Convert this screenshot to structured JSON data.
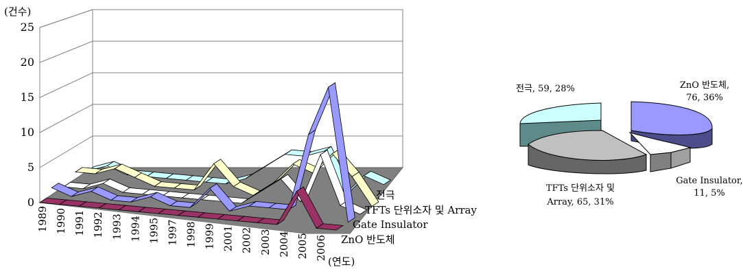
{
  "figure": {
    "left_chart": {
      "y_unit_label": "(건수)",
      "x_unit_label": "(연도)",
      "y_ticks": [
        "0",
        "5",
        "10",
        "15",
        "20",
        "25"
      ],
      "series_labels": [
        "전극",
        "TFTs 단위소자 및 Array",
        "Gate Insulator",
        "ZnO 반도체"
      ]
    },
    "right_chart": {
      "labels": [
        {
          "lines": [
            "전극, 59, 28%"
          ]
        },
        {
          "lines": [
            "ZnO 반도체,",
            "76, 36%"
          ]
        },
        {
          "lines": [
            "TFTs 단위소자 및",
            "Array, 65, 31%"
          ]
        },
        {
          "lines": [
            "Gate Insulator,",
            "11, 5%"
          ]
        }
      ]
    }
  },
  "chart_data": [
    {
      "type": "line",
      "subtype": "3d-ribbon",
      "x": [
        "1989",
        "1990",
        "1991",
        "1992",
        "1993",
        "1994",
        "1995",
        "1997",
        "1998",
        "1999",
        "2001",
        "2002",
        "2003",
        "2004",
        "2005",
        "2006"
      ],
      "ylim": [
        0,
        25
      ],
      "yticks": [
        0,
        5,
        10,
        15,
        20,
        25
      ],
      "ylabel": "(건수)",
      "xlabel": "(연도)",
      "grid": true,
      "series": [
        {
          "name": "전극",
          "color": "#ccffff",
          "values": [
            0,
            1,
            0,
            0,
            0,
            0,
            0,
            0,
            1,
            3,
            5,
            5,
            6,
            0,
            3,
            2
          ]
        },
        {
          "name": "TFTs 단위소자 및 Array",
          "color": "#ffffcc",
          "values": [
            1,
            1,
            2,
            1,
            0,
            0,
            0,
            4,
            1,
            0,
            2,
            5,
            4,
            7,
            4,
            0
          ]
        },
        {
          "name": "Gate Insulator",
          "color": "#ffffff",
          "values": [
            0,
            0,
            1,
            0,
            0,
            0,
            0,
            0,
            0,
            0,
            2,
            4,
            1,
            8,
            1,
            0
          ]
        },
        {
          "name": "ZnO 반도체",
          "color": "#9999ff",
          "values": [
            1,
            0,
            1,
            0,
            0,
            1,
            0,
            0,
            3,
            0,
            1,
            1,
            1,
            12,
            19,
            0
          ]
        },
        {
          "name": "",
          "color": "#993366",
          "values": [
            0,
            0,
            0,
            0,
            0,
            0,
            0,
            0,
            0,
            0,
            0,
            0,
            0,
            5,
            0,
            0
          ]
        }
      ]
    },
    {
      "type": "pie",
      "subtype": "3d-exploded",
      "slices": [
        {
          "name": "전극",
          "value": 59,
          "percent": 28,
          "color": "#ccffff"
        },
        {
          "name": "ZnO 반도체",
          "value": 76,
          "percent": 36,
          "color": "#9999ff"
        },
        {
          "name": "TFTs 단위소자 및 Array",
          "value": 65,
          "percent": 31,
          "color": "#c0c0c0"
        },
        {
          "name": "Gate Insulator",
          "value": 11,
          "percent": 5,
          "color": "#ffffff"
        }
      ]
    }
  ]
}
